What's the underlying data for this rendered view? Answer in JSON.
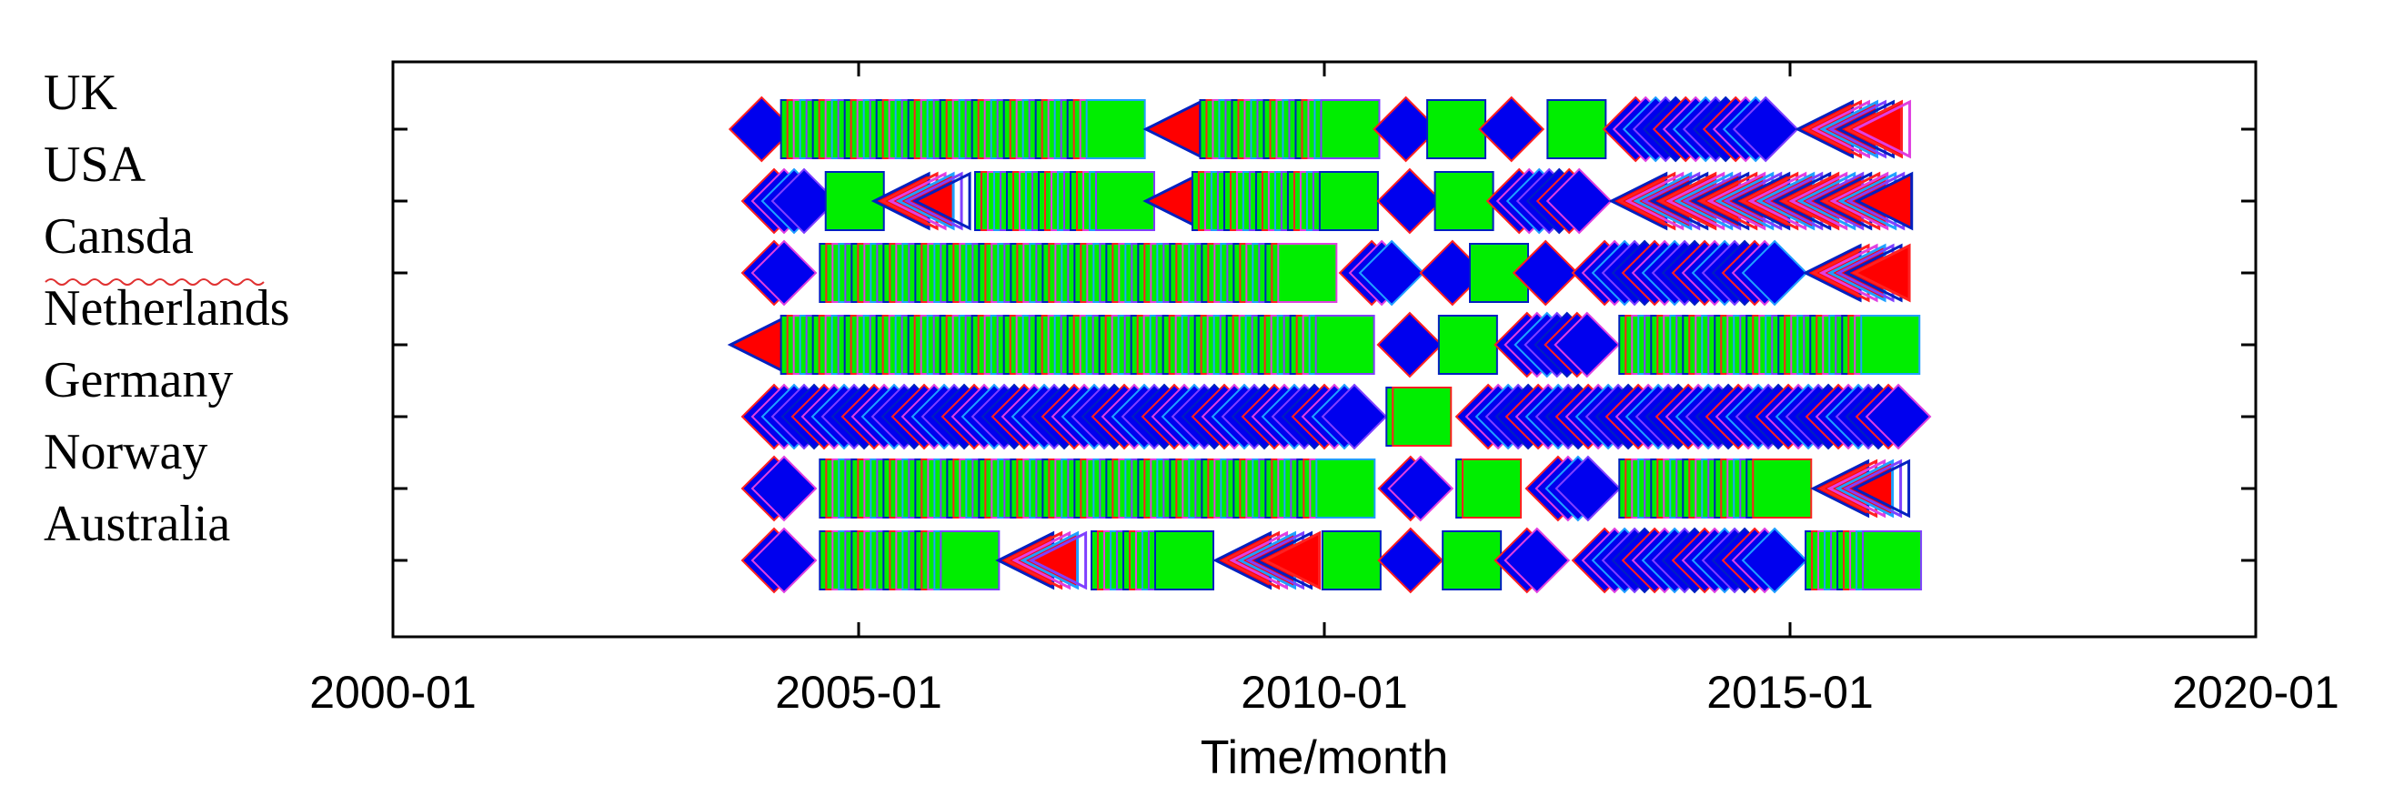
{
  "chart_data": {
    "type": "scatter",
    "title": "",
    "xlabel": "Time/month",
    "ylabel": "",
    "xlim": [
      "2000-01",
      "2020-01"
    ],
    "x_ticks": [
      "2000-01",
      "2005-01",
      "2010-01",
      "2015-01",
      "2020-01"
    ],
    "categories": [
      "UK",
      "USA",
      "Cansda",
      "Netherlands",
      "Germany",
      "Norway",
      "Australia"
    ],
    "grid": false,
    "legend": "none",
    "colors": {
      "green": "#00ee00",
      "blue": "#0000ee",
      "red": "#ff0000",
      "mixed": "#8a5a9a",
      "border": "#0020c0"
    },
    "series": [
      {
        "category": "UK",
        "range": [
          "2003-10",
          "2016-05"
        ],
        "segments": [
          {
            "start": "2003-10",
            "end": "2004-03",
            "marker": "diamond"
          },
          {
            "start": "2004-03",
            "end": "2008-02",
            "marker": "square"
          },
          {
            "start": "2008-02",
            "end": "2008-09",
            "marker": "triangle"
          },
          {
            "start": "2008-09",
            "end": "2010-08",
            "marker": "square"
          },
          {
            "start": "2010-08",
            "end": "2011-03",
            "marker": "diamond"
          },
          {
            "start": "2011-03",
            "end": "2011-09",
            "marker": "square"
          },
          {
            "start": "2011-09",
            "end": "2012-06",
            "marker": "diamond"
          },
          {
            "start": "2012-06",
            "end": "2013-01",
            "marker": "square"
          },
          {
            "start": "2013-01",
            "end": "2015-02",
            "marker": "diamond"
          },
          {
            "start": "2015-02",
            "end": "2016-05",
            "marker": "triangle"
          }
        ]
      },
      {
        "category": "USA",
        "range": [
          "2003-10",
          "2016-05"
        ],
        "segments": [
          {
            "start": "2003-10",
            "end": "2004-10",
            "marker": "diamond"
          },
          {
            "start": "2004-10",
            "end": "2005-03",
            "marker": "square"
          },
          {
            "start": "2005-03",
            "end": "2006-04",
            "marker": "triangle"
          },
          {
            "start": "2006-04",
            "end": "2008-03",
            "marker": "square"
          },
          {
            "start": "2008-03",
            "end": "2008-08",
            "marker": "triangle"
          },
          {
            "start": "2008-08",
            "end": "2010-08",
            "marker": "square"
          },
          {
            "start": "2010-08",
            "end": "2011-04",
            "marker": "diamond"
          },
          {
            "start": "2011-04",
            "end": "2011-10",
            "marker": "square"
          },
          {
            "start": "2011-10",
            "end": "2013-02",
            "marker": "diamond"
          },
          {
            "start": "2013-02",
            "end": "2016-05",
            "marker": "triangle"
          }
        ]
      },
      {
        "category": "Cansda",
        "range": [
          "2003-10",
          "2016-05"
        ],
        "segments": [
          {
            "start": "2003-10",
            "end": "2004-08",
            "marker": "diamond"
          },
          {
            "start": "2004-08",
            "end": "2010-03",
            "marker": "square"
          },
          {
            "start": "2010-03",
            "end": "2011-02",
            "marker": "diamond"
          },
          {
            "start": "2011-02",
            "end": "2011-09",
            "marker": "diamond"
          },
          {
            "start": "2011-09",
            "end": "2012-02",
            "marker": "square"
          },
          {
            "start": "2012-02",
            "end": "2012-09",
            "marker": "diamond"
          },
          {
            "start": "2012-09",
            "end": "2015-03",
            "marker": "diamond"
          },
          {
            "start": "2015-03",
            "end": "2016-05",
            "marker": "triangle"
          }
        ]
      },
      {
        "category": "Netherlands",
        "range": [
          "2003-09",
          "2016-06"
        ],
        "segments": [
          {
            "start": "2003-09",
            "end": "2004-03",
            "marker": "triangle"
          },
          {
            "start": "2004-03",
            "end": "2010-08",
            "marker": "square"
          },
          {
            "start": "2010-08",
            "end": "2011-04",
            "marker": "diamond"
          },
          {
            "start": "2011-04",
            "end": "2011-11",
            "marker": "square"
          },
          {
            "start": "2011-11",
            "end": "2013-03",
            "marker": "diamond"
          },
          {
            "start": "2013-03",
            "end": "2016-06",
            "marker": "square"
          }
        ]
      },
      {
        "category": "Germany",
        "range": [
          "2003-10",
          "2016-07"
        ],
        "segments": [
          {
            "start": "2003-10",
            "end": "2010-09",
            "marker": "diamond"
          },
          {
            "start": "2010-09",
            "end": "2011-06",
            "marker": "square"
          },
          {
            "start": "2011-06",
            "end": "2016-07",
            "marker": "diamond"
          }
        ]
      },
      {
        "category": "Norway",
        "range": [
          "2003-10",
          "2016-05"
        ],
        "segments": [
          {
            "start": "2003-10",
            "end": "2004-08",
            "marker": "diamond"
          },
          {
            "start": "2004-08",
            "end": "2010-08",
            "marker": "square"
          },
          {
            "start": "2010-08",
            "end": "2011-06",
            "marker": "diamond"
          },
          {
            "start": "2011-06",
            "end": "2012-03",
            "marker": "square"
          },
          {
            "start": "2012-03",
            "end": "2013-03",
            "marker": "diamond"
          },
          {
            "start": "2013-03",
            "end": "2015-04",
            "marker": "square"
          },
          {
            "start": "2015-04",
            "end": "2016-05",
            "marker": "triangle"
          }
        ]
      },
      {
        "category": "Australia",
        "range": [
          "2003-10",
          "2016-06"
        ],
        "segments": [
          {
            "start": "2003-10",
            "end": "2004-08",
            "marker": "diamond"
          },
          {
            "start": "2004-08",
            "end": "2006-07",
            "marker": "square"
          },
          {
            "start": "2006-07",
            "end": "2007-07",
            "marker": "triangle"
          },
          {
            "start": "2007-07",
            "end": "2008-11",
            "marker": "square"
          },
          {
            "start": "2008-11",
            "end": "2010-01",
            "marker": "triangle"
          },
          {
            "start": "2010-01",
            "end": "2010-08",
            "marker": "square"
          },
          {
            "start": "2010-08",
            "end": "2011-05",
            "marker": "diamond"
          },
          {
            "start": "2011-05",
            "end": "2011-11",
            "marker": "square"
          },
          {
            "start": "2011-11",
            "end": "2012-09",
            "marker": "diamond"
          },
          {
            "start": "2012-09",
            "end": "2015-03",
            "marker": "diamond"
          },
          {
            "start": "2015-03",
            "end": "2016-06",
            "marker": "square"
          }
        ]
      }
    ]
  }
}
